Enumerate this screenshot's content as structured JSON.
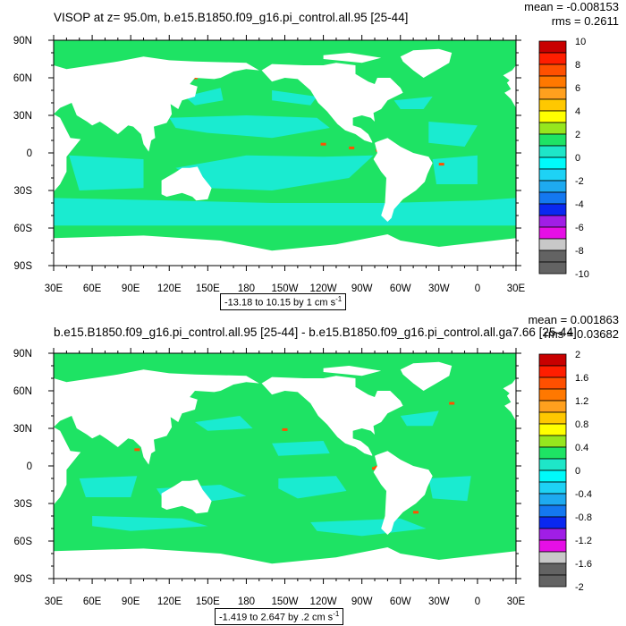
{
  "colors": {
    "land": "#ffffff",
    "frame": "#000000",
    "green_field": "#1ee364",
    "cyan_field": "#1aebd0",
    "palette": [
      "#636363",
      "#c8c8c8",
      "#e60fe6",
      "#a01ee6",
      "#0a28f0",
      "#1478f0",
      "#1eaaf0",
      "#1ed2f5",
      "#00fafa",
      "#1ee6c8",
      "#1ee364",
      "#96e61e",
      "#ffff00",
      "#ffc800",
      "#ffa01e",
      "#ff7800",
      "#ff5000",
      "#ff1e00",
      "#c80000"
    ]
  },
  "chart_data": [
    {
      "type": "heatmap",
      "title": "VISOP at z=  95.0m, b.e15.B1850.f09_g16.pi_control.all.95 [25-44]",
      "mean_label": "mean = -0.008153",
      "rms_label": "rms = 0.2611",
      "x_ticks": [
        "30E",
        "60E",
        "90E",
        "120E",
        "150E",
        "180",
        "150W",
        "120W",
        "90W",
        "60W",
        "30W",
        "0",
        "30E"
      ],
      "y_ticks": [
        "90N",
        "60N",
        "30N",
        "0",
        "30S",
        "60S",
        "90S"
      ],
      "xlim": [
        30,
        390
      ],
      "ylim": [
        -90,
        90
      ],
      "colorbar_levels": [
        -10,
        -9,
        -8,
        -7,
        -6,
        -5,
        -4,
        -3,
        -2,
        -1,
        0,
        1,
        2,
        3,
        4,
        5,
        6,
        7,
        8,
        9,
        10
      ],
      "colorbar_labels": [
        "10",
        "8",
        "6",
        "4",
        "2",
        "0",
        "-2",
        "-4",
        "-6",
        "-8",
        "-10"
      ],
      "range_label": "-13.18 to 10.15 by 1 cm s",
      "range_exp": "-1"
    },
    {
      "type": "heatmap",
      "title": "b.e15.B1850.f09_g16.pi_control.all.95 [25-44] - b.e15.B1850.f09_g16.pi_control.all.ga7.66 [25-44]",
      "mean_label": "mean = 0.001863",
      "rms_label": "rms = 0.03682",
      "x_ticks": [
        "30E",
        "60E",
        "90E",
        "120E",
        "150E",
        "180",
        "150W",
        "120W",
        "90W",
        "60W",
        "30W",
        "0",
        "30E"
      ],
      "y_ticks": [
        "90N",
        "60N",
        "30N",
        "0",
        "30S",
        "60S",
        "90S"
      ],
      "xlim": [
        30,
        390
      ],
      "ylim": [
        -90,
        90
      ],
      "colorbar_levels": [
        -2,
        -1.8,
        -1.6,
        -1.4,
        -1.2,
        -1,
        -0.8,
        -0.6,
        -0.4,
        -0.2,
        0,
        0.2,
        0.4,
        0.6,
        0.8,
        1,
        1.2,
        1.4,
        1.6,
        1.8,
        2
      ],
      "colorbar_labels": [
        "2",
        "1.6",
        "1.2",
        "0.8",
        "0.4",
        "0",
        "-0.4",
        "-0.8",
        "-1.2",
        "-1.6",
        "-2"
      ],
      "range_label": "-1.419 to 2.647 by .2 cm s",
      "range_exp": "-1"
    }
  ]
}
